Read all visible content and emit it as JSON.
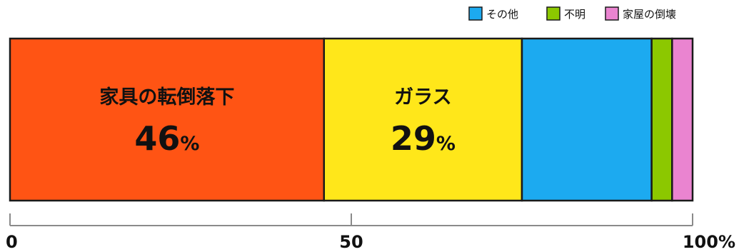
{
  "chart_data": {
    "type": "bar",
    "orientation": "horizontal-stacked-100",
    "xlim": [
      0,
      100
    ],
    "segments": [
      {
        "name": "家具の転倒落下",
        "value": 46,
        "value_label": "46",
        "unit": "%",
        "color": "#FF5414"
      },
      {
        "name": "ガラス",
        "value": 29,
        "value_label": "29",
        "unit": "%",
        "color": "#FFE71A"
      },
      {
        "name": "その他",
        "value": 19,
        "color": "#1CAAF0"
      },
      {
        "name": "不明",
        "value": 3,
        "color": "#8CC800"
      },
      {
        "name": "家屋の倒壊",
        "value": 3,
        "color": "#EA84D0"
      }
    ],
    "legend": {
      "placement": "top-right",
      "entries": [
        {
          "label": "その他",
          "color": "#1CAAF0"
        },
        {
          "label": "不明",
          "color": "#8CC800"
        },
        {
          "label": "家屋の倒壊",
          "color": "#EA84D0"
        }
      ]
    },
    "ticks": [
      {
        "value": 0,
        "label": "0"
      },
      {
        "value": 50,
        "label": "50"
      },
      {
        "value": 100,
        "label": "100%"
      }
    ]
  }
}
